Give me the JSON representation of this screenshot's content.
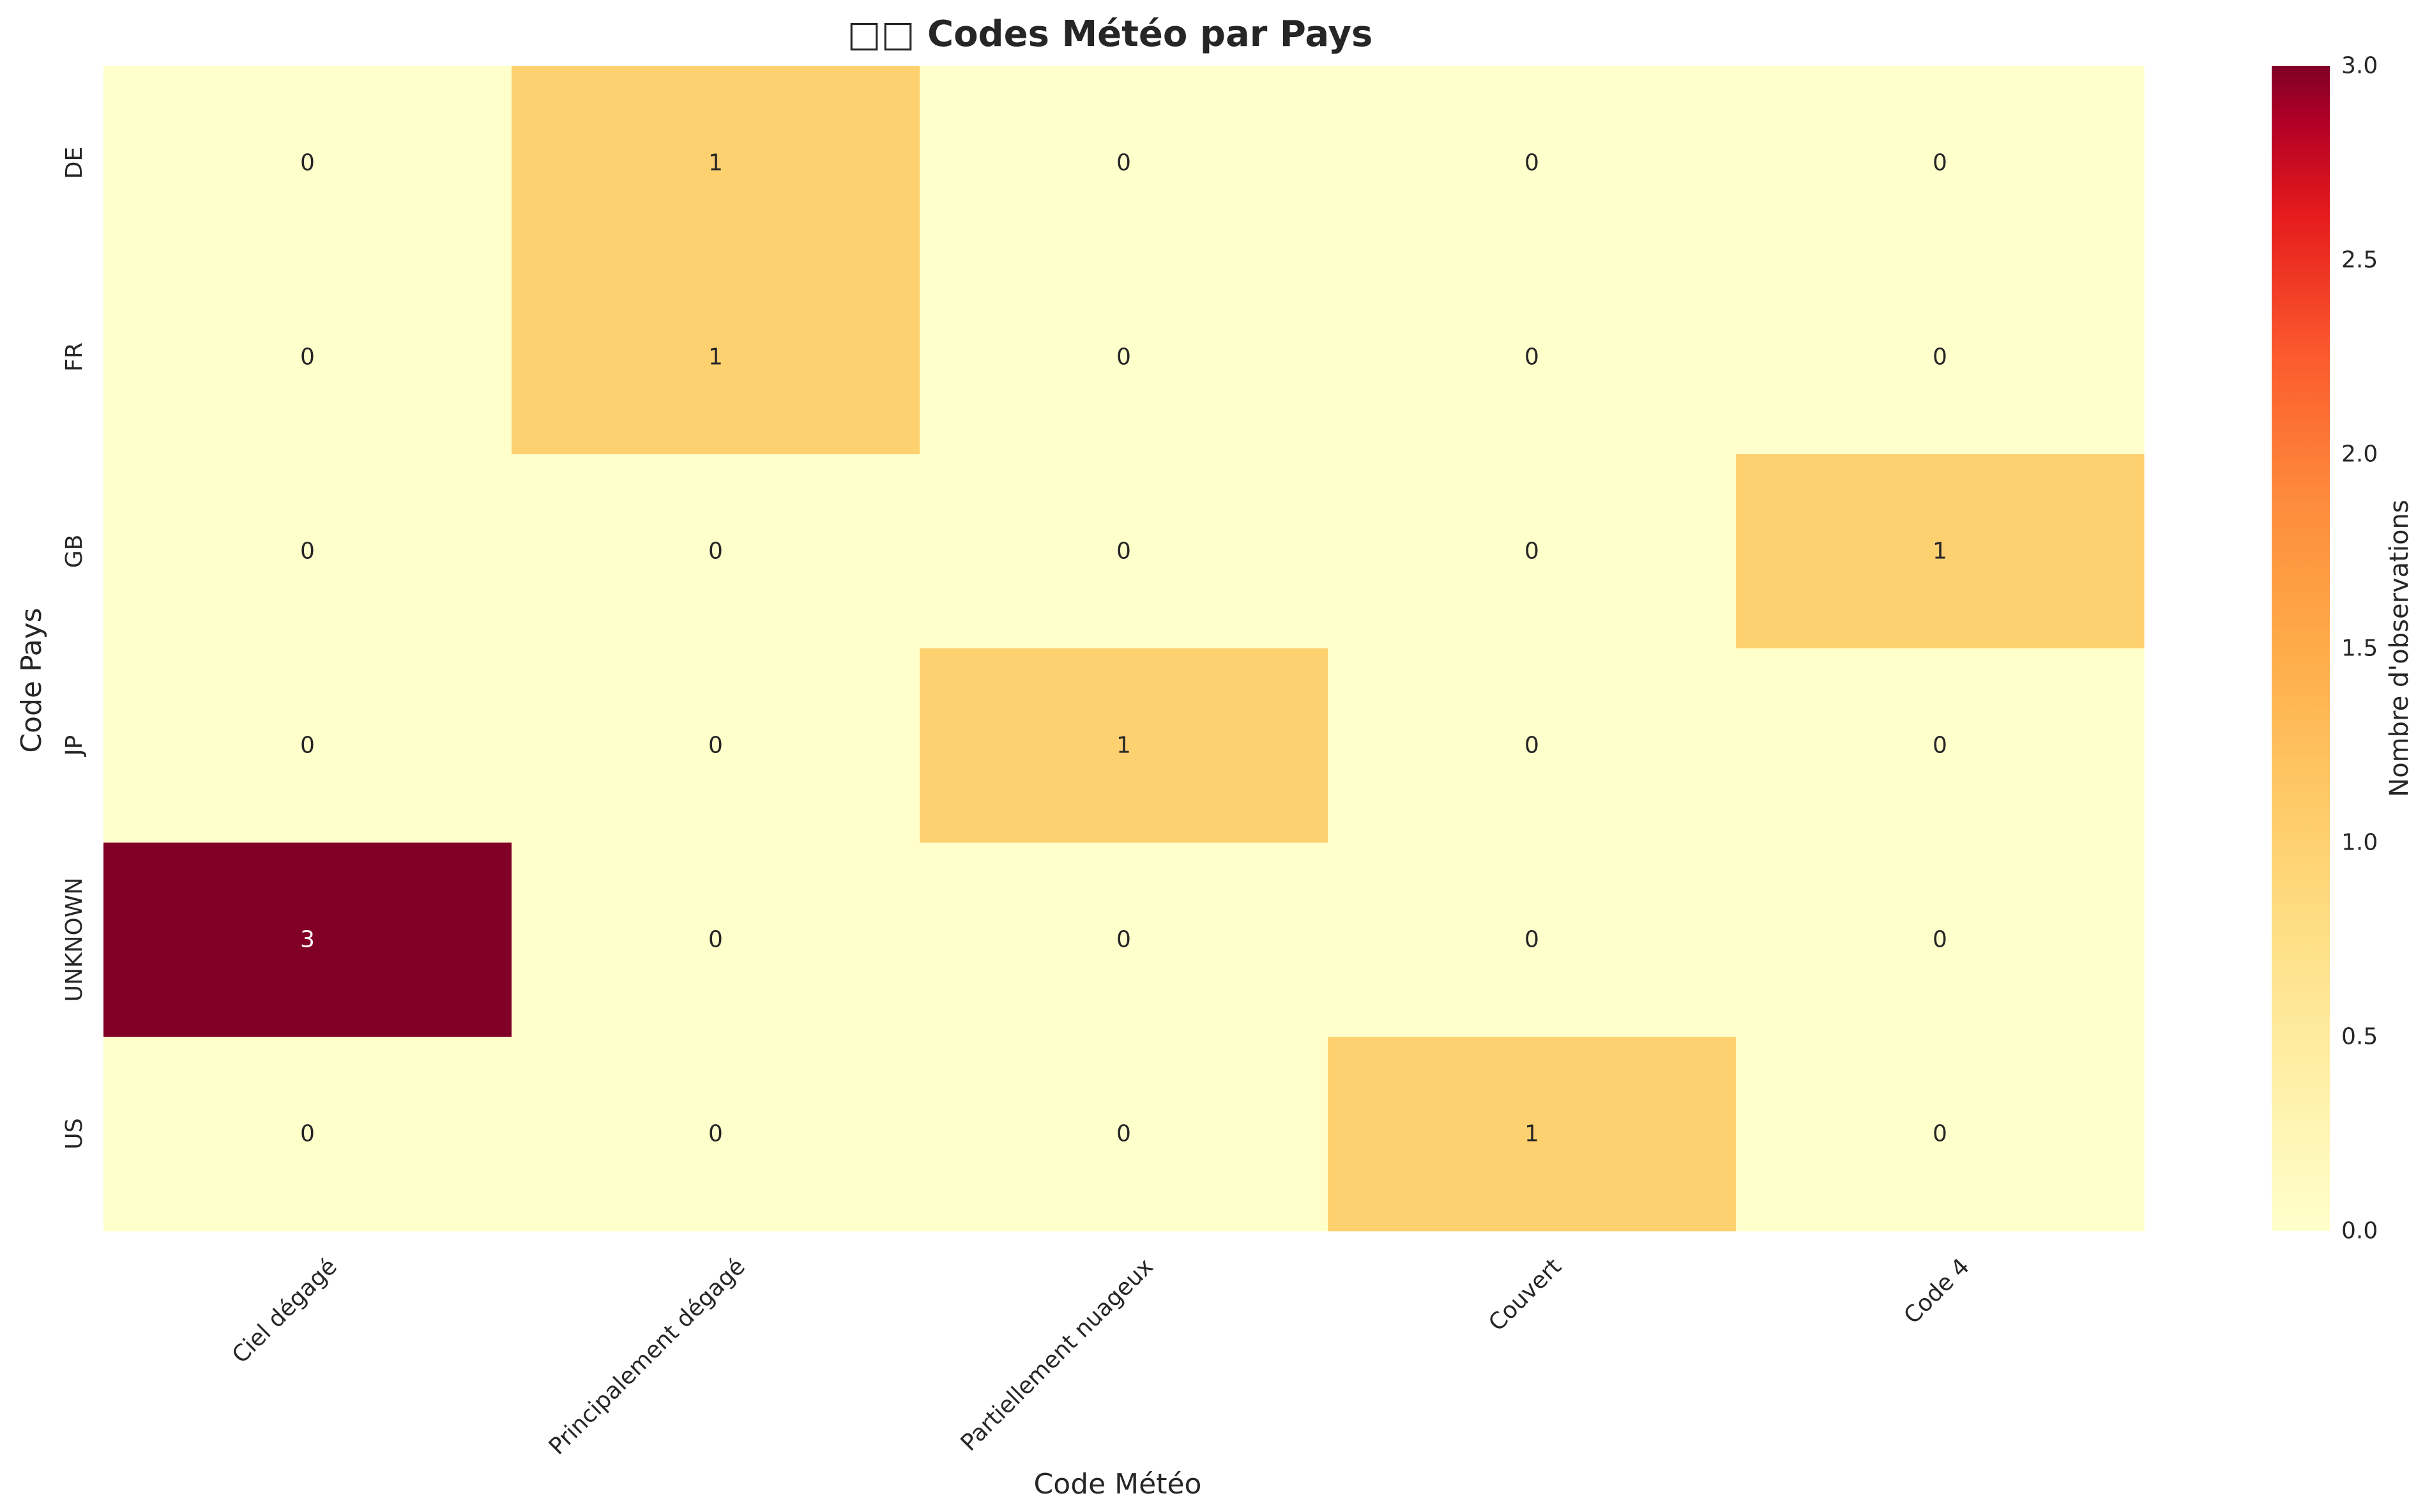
{
  "chart_data": {
    "type": "heatmap",
    "title": "□□ Codes Météo par Pays",
    "xlabel": "Code Météo",
    "ylabel": "Code Pays",
    "x_categories": [
      "Ciel dégagé",
      "Principalement dégagé",
      "Partiellement nuageux",
      "Couvert",
      "Code 4"
    ],
    "y_categories": [
      "DE",
      "FR",
      "GB",
      "JP",
      "UNKNOWN",
      "US"
    ],
    "values": [
      [
        0,
        1,
        0,
        0,
        0
      ],
      [
        0,
        1,
        0,
        0,
        0
      ],
      [
        0,
        0,
        0,
        0,
        1
      ],
      [
        0,
        0,
        1,
        0,
        0
      ],
      [
        3,
        0,
        0,
        0,
        0
      ],
      [
        0,
        0,
        0,
        1,
        0
      ]
    ],
    "colorbar": {
      "label": "Nombre d'observations",
      "min": 0,
      "max": 3,
      "ticks": [
        "0.0",
        "0.5",
        "1.0",
        "1.5",
        "2.0",
        "2.5",
        "3.0"
      ]
    },
    "colormap": "YlOrRd",
    "colors": {
      "low": "#ffffcc",
      "mid": "#fdbb5b",
      "high": "#800026"
    },
    "grid": false
  }
}
